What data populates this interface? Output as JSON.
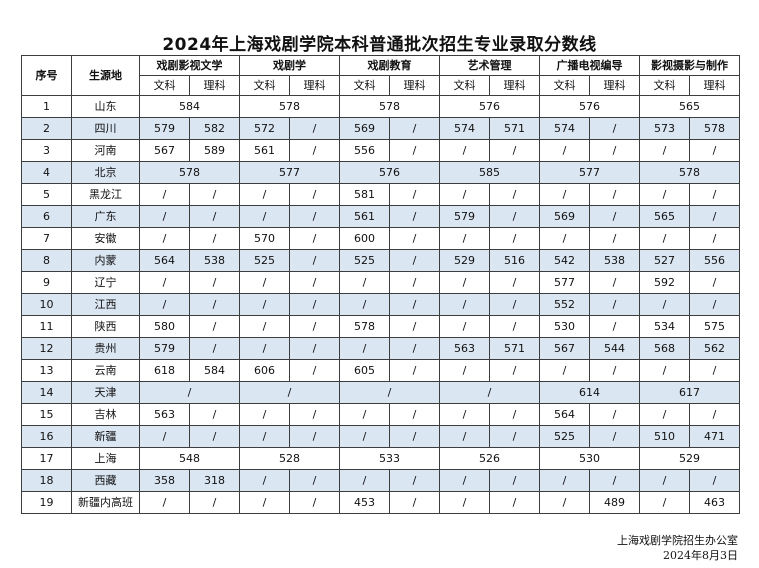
{
  "title": "2024年上海戏剧学院本科普通批次招生专业录取分数线",
  "header": {
    "index": "序号",
    "region": "生源地",
    "majors": [
      "戏剧影视文学",
      "戏剧学",
      "戏剧教育",
      "艺术管理",
      "广播电视编导",
      "影视摄影与制作"
    ],
    "arts": "文科",
    "science": "理科"
  },
  "rows": [
    {
      "no": "1",
      "region": "山东",
      "cells": [
        "584",
        "578",
        "578",
        "576",
        "576",
        "565"
      ]
    },
    {
      "no": "2",
      "region": "四川",
      "cells": [
        "579",
        "582",
        "572",
        "/",
        "569",
        "/",
        "574",
        "571",
        "574",
        "/",
        "573",
        "578"
      ]
    },
    {
      "no": "3",
      "region": "河南",
      "cells": [
        "567",
        "589",
        "561",
        "/",
        "556",
        "/",
        "/",
        "/",
        "/",
        "/",
        "/",
        "/"
      ]
    },
    {
      "no": "4",
      "region": "北京",
      "cells": [
        "578",
        "577",
        "576",
        "585",
        "577",
        "578"
      ]
    },
    {
      "no": "5",
      "region": "黑龙江",
      "cells": [
        "/",
        "/",
        "/",
        "/",
        "581",
        "/",
        "/",
        "/",
        "/",
        "/",
        "/",
        "/"
      ]
    },
    {
      "no": "6",
      "region": "广东",
      "cells": [
        "/",
        "/",
        "/",
        "/",
        "561",
        "/",
        "579",
        "/",
        "569",
        "/",
        "565",
        "/"
      ]
    },
    {
      "no": "7",
      "region": "安徽",
      "cells": [
        "/",
        "/",
        "570",
        "/",
        "600",
        "/",
        "/",
        "/",
        "/",
        "/",
        "/",
        "/"
      ]
    },
    {
      "no": "8",
      "region": "内蒙",
      "cells": [
        "564",
        "538",
        "525",
        "/",
        "525",
        "/",
        "529",
        "516",
        "542",
        "538",
        "527",
        "556"
      ]
    },
    {
      "no": "9",
      "region": "辽宁",
      "cells": [
        "/",
        "/",
        "/",
        "/",
        "/",
        "/",
        "/",
        "/",
        "577",
        "/",
        "592",
        "/"
      ]
    },
    {
      "no": "10",
      "region": "江西",
      "cells": [
        "/",
        "/",
        "/",
        "/",
        "/",
        "/",
        "/",
        "/",
        "552",
        "/",
        "/",
        "/"
      ]
    },
    {
      "no": "11",
      "region": "陕西",
      "cells": [
        "580",
        "/",
        "/",
        "/",
        "578",
        "/",
        "/",
        "/",
        "530",
        "/",
        "534",
        "575"
      ]
    },
    {
      "no": "12",
      "region": "贵州",
      "cells": [
        "579",
        "/",
        "/",
        "/",
        "/",
        "/",
        "563",
        "571",
        "567",
        "544",
        "568",
        "562"
      ]
    },
    {
      "no": "13",
      "region": "云南",
      "cells": [
        "618",
        "584",
        "606",
        "/",
        "605",
        "/",
        "/",
        "/",
        "/",
        "/",
        "/",
        "/"
      ]
    },
    {
      "no": "14",
      "region": "天津",
      "cells": [
        "/",
        "/",
        "/",
        "/",
        "614",
        "617"
      ]
    },
    {
      "no": "15",
      "region": "吉林",
      "cells": [
        "563",
        "/",
        "/",
        "/",
        "/",
        "/",
        "/",
        "/",
        "564",
        "/",
        "/",
        "/"
      ]
    },
    {
      "no": "16",
      "region": "新疆",
      "cells": [
        "/",
        "/",
        "/",
        "/",
        "/",
        "/",
        "/",
        "/",
        "525",
        "/",
        "510",
        "471"
      ]
    },
    {
      "no": "17",
      "region": "上海",
      "cells": [
        "548",
        "528",
        "533",
        "526",
        "530",
        "529"
      ]
    },
    {
      "no": "18",
      "region": "西藏",
      "cells": [
        "358",
        "318",
        "/",
        "/",
        "/",
        "/",
        "/",
        "/",
        "/",
        "/",
        "/",
        "/"
      ]
    },
    {
      "no": "19",
      "region": "新疆内高班",
      "cells": [
        "/",
        "/",
        "/",
        "/",
        "453",
        "/",
        "/",
        "/",
        "/",
        "489",
        "/",
        "463"
      ]
    }
  ],
  "footer": {
    "office": "上海戏剧学院招生办公室",
    "date": "2024年8月3日"
  }
}
